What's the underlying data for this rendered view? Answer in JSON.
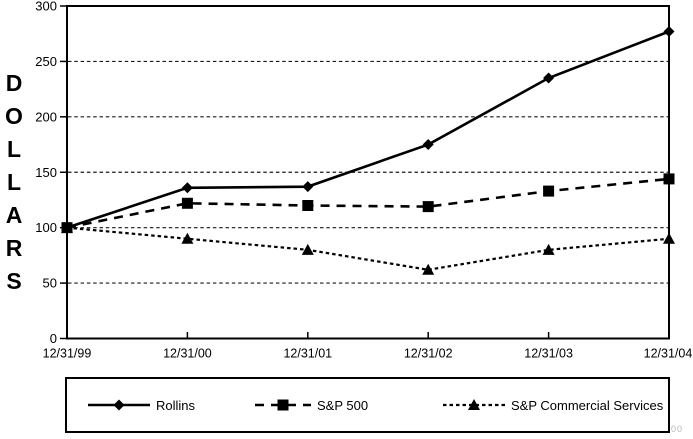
{
  "chart_data": {
    "type": "line",
    "title": "",
    "ylabel": "DOLLARS",
    "xlabel": "",
    "categories": [
      "12/31/99",
      "12/31/00",
      "12/31/01",
      "12/31/02",
      "12/31/03",
      "12/31/04"
    ],
    "y_ticks": [
      0,
      50,
      100,
      150,
      200,
      250,
      300
    ],
    "grid_values": [
      50,
      100,
      150,
      200,
      250
    ],
    "grid_style": "dashed",
    "ylim": [
      0,
      300
    ],
    "legend_position": "bottom-box",
    "series": [
      {
        "name": "Rollins",
        "line": "solid",
        "marker": "diamond",
        "values": [
          100,
          136,
          137,
          175,
          235,
          277
        ]
      },
      {
        "name": "S&P 500",
        "line": "dashed",
        "marker": "square",
        "values": [
          100,
          122,
          120,
          119,
          133,
          144
        ]
      },
      {
        "name": "S&P Commercial Services",
        "line": "dotted",
        "marker": "triangle",
        "values": [
          100,
          90,
          80,
          62,
          80,
          90
        ]
      }
    ]
  },
  "colors": {
    "line": "#000000",
    "grid": "#1a1a1a",
    "background": "#ffffff",
    "artifact": "#b5b5b5"
  },
  "scan_artifact": "00"
}
